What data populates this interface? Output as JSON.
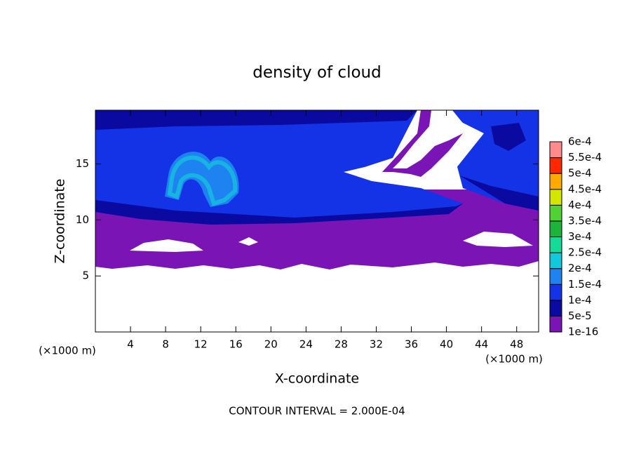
{
  "chart_data": {
    "type": "contour",
    "title": "density of cloud",
    "x_label": "X-coordinate",
    "y_label": "Z-coordinate",
    "x_unit": "(×1000 m)",
    "y_unit": "(×1000 m)",
    "footnote": "CONTOUR INTERVAL = 2.000E-04",
    "xlim": [
      0,
      50.5
    ],
    "ylim": [
      0,
      19.8
    ],
    "xticks": [
      4,
      8,
      12,
      16,
      20,
      24,
      28,
      32,
      36,
      40,
      44,
      48
    ],
    "yticks": [
      5,
      10,
      15
    ],
    "levels": [
      {
        "value": 1e-16,
        "label": "1e-16"
      },
      {
        "value": 5e-05,
        "label": "5e-5"
      },
      {
        "value": 0.0001,
        "label": "1e-4"
      },
      {
        "value": 0.00015,
        "label": "1.5e-4"
      },
      {
        "value": 0.0002,
        "label": "2e-4"
      },
      {
        "value": 0.00025,
        "label": "2.5e-4"
      },
      {
        "value": 0.0003,
        "label": "3e-4"
      },
      {
        "value": 0.00035,
        "label": "3.5e-4"
      },
      {
        "value": 0.0004,
        "label": "4e-4"
      },
      {
        "value": 0.00045,
        "label": "4.5e-4"
      },
      {
        "value": 0.0005,
        "label": "5e-4"
      },
      {
        "value": 0.00055,
        "label": "5.5e-4"
      },
      {
        "value": 0.0006,
        "label": "6e-4"
      }
    ],
    "colors": [
      "#7a14b4",
      "#0a0aa0",
      "#1432e6",
      "#1e82f0",
      "#14c8dc",
      "#14dc96",
      "#1eb43c",
      "#50d232",
      "#d2e600",
      "#ffaa00",
      "#ff2800",
      "#ff8c8c"
    ]
  }
}
